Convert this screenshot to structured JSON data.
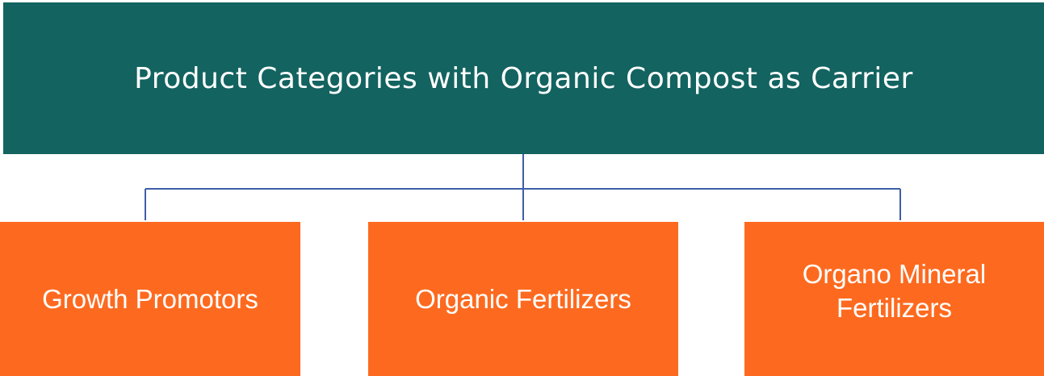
{
  "nodes": [
    {
      "label": "Product Categories with Organic Compost as Carrier"
    },
    {
      "label": "Growth Promotors"
    },
    {
      "label": "Organic Fertilizers"
    },
    {
      "label": "Organo Mineral\nFertilizers"
    }
  ]
}
